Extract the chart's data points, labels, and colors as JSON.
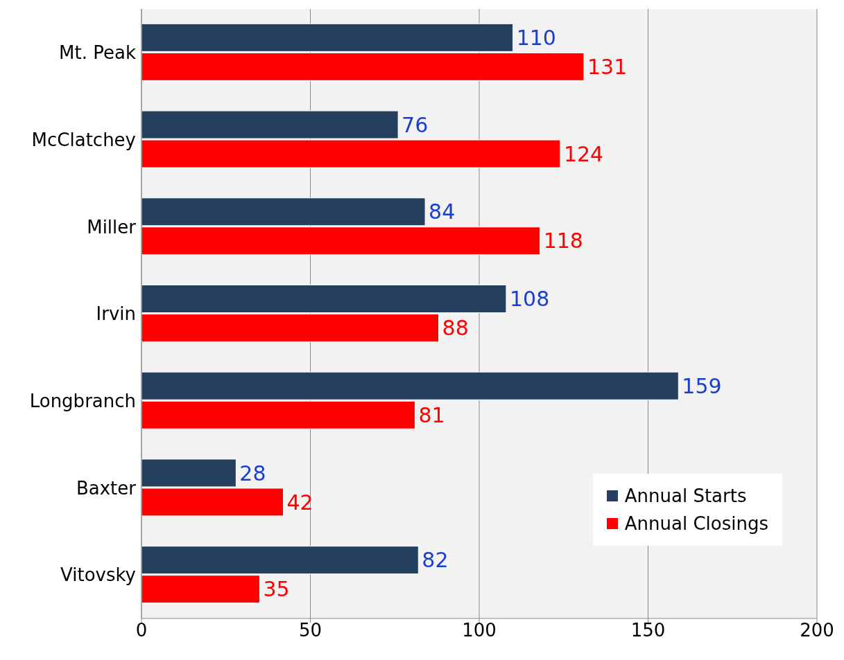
{
  "chart_data": {
    "type": "bar",
    "orientation": "horizontal",
    "categories": [
      "Mt. Peak",
      "McClatchey",
      "Miller",
      "Irvin",
      "Longbranch",
      "Baxter",
      "Vitovsky"
    ],
    "series": [
      {
        "name": "Annual Starts",
        "color": "#253f5e",
        "values": [
          110,
          76,
          84,
          108,
          159,
          28,
          82
        ]
      },
      {
        "name": "Annual Closings",
        "color": "#ff0000",
        "values": [
          131,
          124,
          118,
          88,
          81,
          42,
          35
        ]
      }
    ],
    "xlim": [
      0,
      200
    ],
    "xticks": [
      0,
      50,
      100,
      150,
      200
    ],
    "grid": "x",
    "legend": "bottom right",
    "data_labels": true
  }
}
